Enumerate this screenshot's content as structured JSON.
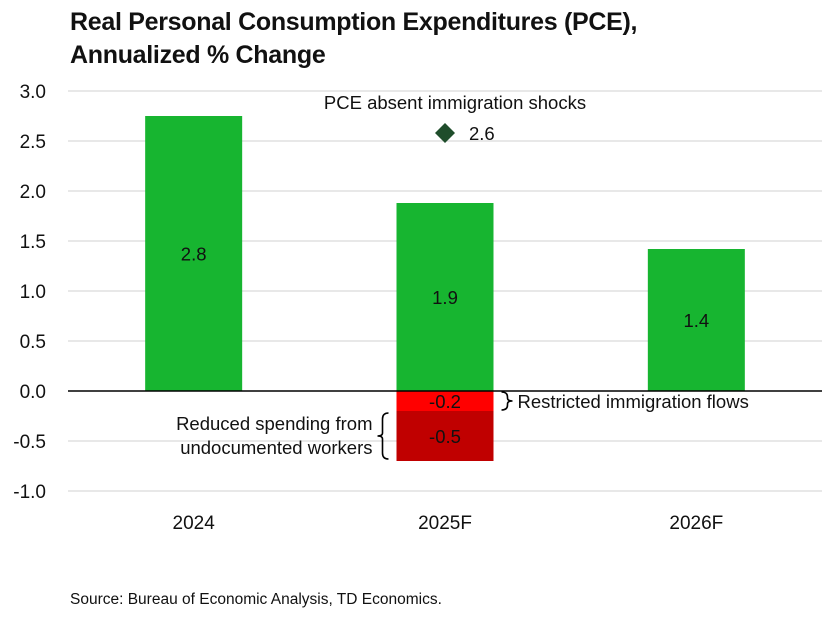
{
  "title_line1": "Real Personal Consumption Expenditures (PCE),",
  "title_line2": "Annualized % Change",
  "source": "Source: Bureau of Economic Analysis, TD Economics.",
  "chart_data": {
    "type": "bar",
    "categories": [
      "2024",
      "2025F",
      "2026F"
    ],
    "ylim": [
      -1.0,
      3.0
    ],
    "yticks": [
      "3.0",
      "2.5",
      "2.0",
      "1.5",
      "1.0",
      "0.5",
      "0.0",
      "-0.5",
      "-1.0"
    ],
    "grid": true,
    "series": [
      {
        "name": "Real PCE",
        "color": "#17b530",
        "values": [
          2.75,
          1.88,
          1.42
        ],
        "labels": [
          "2.8",
          "1.9",
          "1.4"
        ]
      },
      {
        "name": "Restricted immigration flows",
        "color": "#ff0000",
        "values": [
          null,
          -0.2,
          null
        ],
        "labels": [
          "",
          "-0.2",
          ""
        ]
      },
      {
        "name": "Reduced spending from undocumented workers",
        "color": "#c00000",
        "values": [
          null,
          -0.5,
          null
        ],
        "labels": [
          "",
          "-0.5",
          ""
        ]
      }
    ],
    "marker": {
      "name": "PCE absent immigration shocks",
      "category": "2025F",
      "value": 2.58,
      "label": "2.6",
      "color": "#1f4d2b"
    },
    "annotations": {
      "restricted": "Restricted immigration flows",
      "undocumented_line1": "Reduced spending from",
      "undocumented_line2": "undocumented workers",
      "marker_text": "PCE absent immigration shocks"
    }
  }
}
